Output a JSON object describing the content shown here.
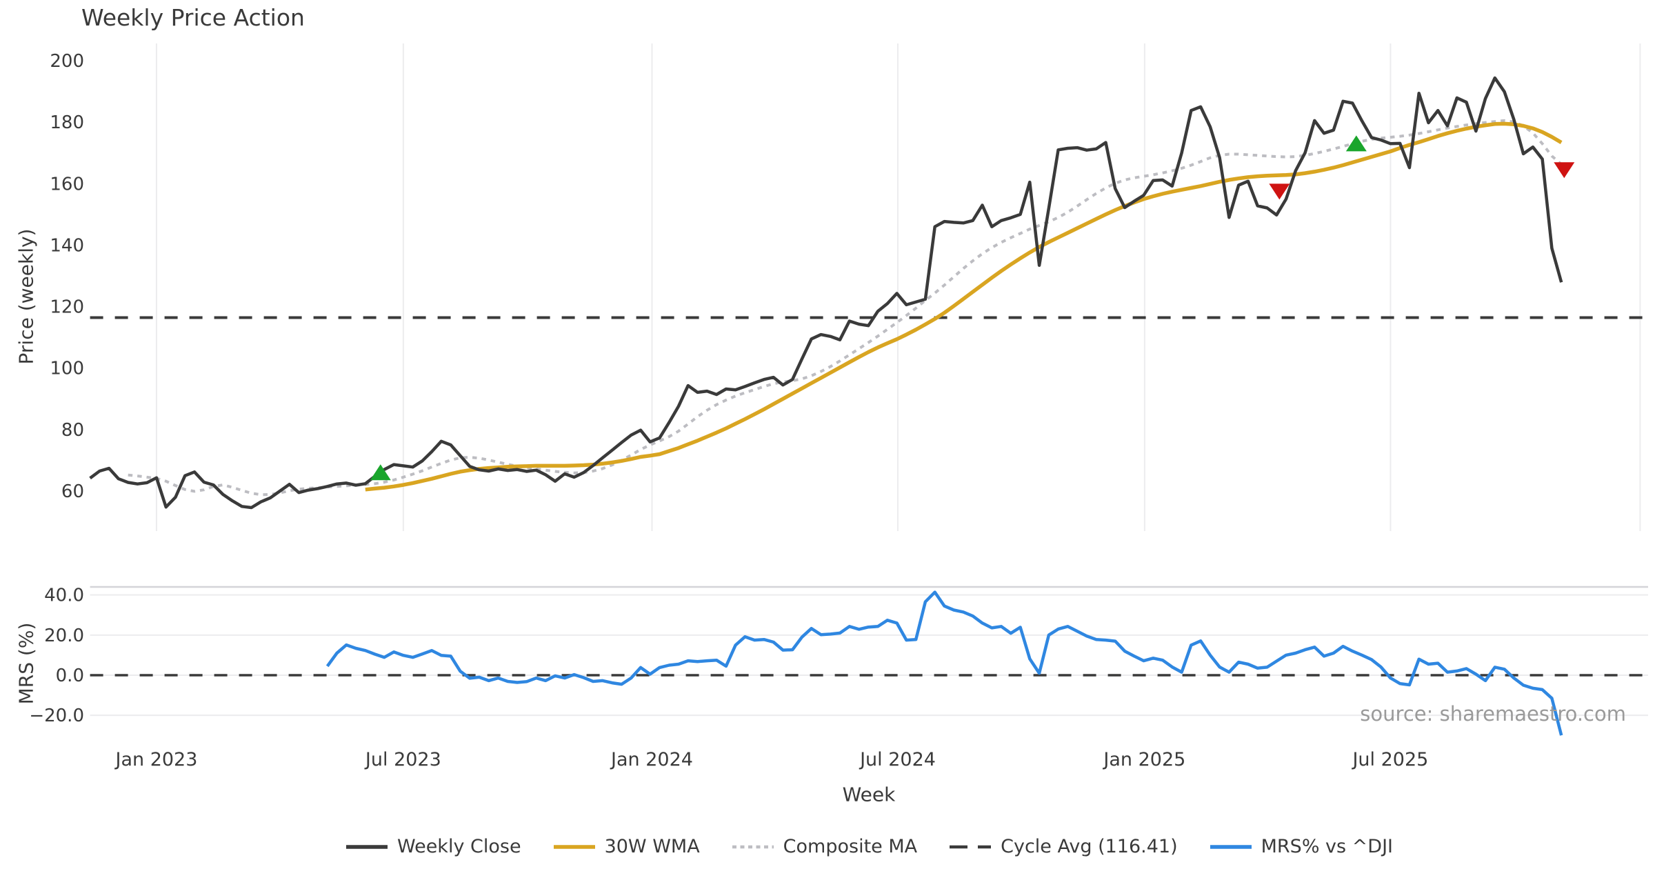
{
  "title": "Weekly Price Action",
  "source": "source: sharemaestro.com",
  "colors": {
    "close": "#3a3a3a",
    "wma": "#d9a521",
    "composite": "#bdbdc2",
    "cycle": "#3a3a3a",
    "mrs": "#2f87e1",
    "buy": "#1aa52c",
    "sell": "#cf1312",
    "grid": "#ececee",
    "spine": "#d4d4d8",
    "tick_text": "#3a3a3a",
    "source_text": "#9a9a9a"
  },
  "legend": [
    {
      "label": "Weekly Close",
      "swatch": "solid",
      "color": "#3a3a3a"
    },
    {
      "label": "30W WMA",
      "swatch": "solid",
      "color": "#d9a521"
    },
    {
      "label": "Composite MA",
      "swatch": "dotted",
      "color": "#bdbdc2"
    },
    {
      "label": "Cycle Avg (116.41)",
      "swatch": "dashed",
      "color": "#3a3a3a"
    },
    {
      "label": "MRS% vs ^DJI",
      "swatch": "solid",
      "color": "#2f87e1"
    }
  ],
  "chart_data": {
    "type": "line",
    "title": "Weekly Price Action",
    "x": {
      "label": "Week",
      "weeks_total": 156,
      "ticks": [
        {
          "week": 7.0,
          "label": "Jan 2023"
        },
        {
          "week": 33.0,
          "label": "Jul 2023"
        },
        {
          "week": 59.2,
          "label": "Jan 2024"
        },
        {
          "week": 85.1,
          "label": "Jul 2024"
        },
        {
          "week": 111.1,
          "label": "Jan 2025"
        },
        {
          "week": 137.0,
          "label": "Jul 2025"
        }
      ],
      "extra_gridline_week": 163.3
    },
    "price_panel": {
      "ylabel": "Price (weekly)",
      "ylim": [
        47,
        205
      ],
      "yticks": [
        60,
        80,
        100,
        120,
        140,
        160,
        180,
        200
      ],
      "cycle_avg": 116.41,
      "series": {
        "weekly_close": {
          "name": "Weekly Close",
          "start_week": 0,
          "values": [
            64.2,
            66.5,
            67.4,
            64.0,
            62.8,
            62.3,
            62.7,
            64.3,
            54.8,
            58.0,
            65.0,
            66.2,
            62.9,
            62.0,
            58.9,
            56.8,
            55.0,
            54.6,
            56.5,
            57.8,
            60.0,
            62.2,
            59.5,
            60.3,
            60.8,
            61.5,
            62.3,
            62.6,
            61.9,
            62.4,
            64.8,
            67.0,
            68.6,
            68.2,
            67.8,
            69.8,
            72.8,
            76.2,
            75.0,
            71.5,
            68.0,
            66.9,
            66.5,
            67.2,
            66.7,
            67.0,
            66.4,
            66.8,
            65.3,
            63.2,
            65.6,
            64.5,
            66.0,
            68.3,
            70.8,
            73.3,
            75.8,
            78.2,
            79.8,
            76.0,
            77.3,
            82.3,
            87.6,
            94.3,
            92.1,
            92.5,
            91.4,
            93.2,
            92.9,
            94.0,
            95.2,
            96.3,
            97.0,
            94.5,
            96.3,
            103.0,
            109.5,
            110.9,
            110.3,
            109.2,
            115.3,
            114.3,
            113.8,
            118.5,
            121.0,
            124.3,
            120.6,
            121.5,
            122.4,
            146.0,
            147.7,
            147.4,
            147.2,
            148.0,
            153.0,
            146.0,
            148.0,
            148.9,
            150.0,
            160.5,
            133.4,
            152.0,
            171.0,
            171.5,
            171.7,
            170.9,
            171.3,
            173.4,
            158.4,
            152.2,
            154.3,
            156.2,
            161.0,
            161.2,
            159.2,
            170.0,
            183.8,
            185.0,
            178.5,
            168.5,
            149.0,
            159.5,
            160.8,
            152.8,
            152.1,
            149.8,
            155.0,
            164.2,
            170.0,
            180.5,
            176.4,
            177.4,
            186.8,
            186.2,
            180.4,
            175.0,
            174.2,
            173.0,
            173.1,
            165.2,
            189.4,
            179.8,
            183.8,
            178.8,
            187.9,
            186.5,
            177.1,
            187.7,
            194.4,
            189.9,
            180.9,
            169.7,
            171.9,
            168.0,
            139.0,
            127.9
          ]
        },
        "wma_30w": {
          "name": "30W WMA",
          "start_week": 29,
          "values": [
            60.5,
            60.8,
            61.1,
            61.5,
            62.0,
            62.6,
            63.3,
            64.0,
            64.8,
            65.6,
            66.3,
            66.8,
            67.2,
            67.5,
            67.7,
            67.9,
            68.0,
            68.1,
            68.2,
            68.2,
            68.2,
            68.2,
            68.3,
            68.4,
            68.6,
            68.9,
            69.3,
            69.8,
            70.4,
            71.1,
            71.5,
            72.0,
            73.0,
            74.0,
            75.2,
            76.4,
            77.7,
            79.0,
            80.4,
            81.9,
            83.4,
            85.0,
            86.6,
            88.3,
            90.0,
            91.7,
            93.4,
            95.1,
            96.8,
            98.5,
            100.2,
            101.9,
            103.6,
            105.2,
            106.7,
            108.1,
            109.4,
            110.9,
            112.5,
            114.2,
            116.0,
            118.0,
            120.2,
            122.5,
            124.8,
            127.1,
            129.4,
            131.6,
            133.7,
            135.7,
            137.6,
            139.4,
            141.0,
            142.5,
            144.0,
            145.5,
            147.0,
            148.5,
            150.0,
            151.4,
            152.7,
            153.9,
            155.0,
            155.9,
            156.7,
            157.4,
            158.0,
            158.6,
            159.2,
            159.9,
            160.6,
            161.2,
            161.7,
            162.1,
            162.4,
            162.6,
            162.7,
            162.8,
            163.0,
            163.4,
            163.9,
            164.5,
            165.2,
            166.0,
            166.9,
            167.8,
            168.7,
            169.6,
            170.5,
            171.6,
            172.6,
            173.5,
            174.5,
            175.5,
            176.4,
            177.2,
            177.9,
            178.5,
            179.0,
            179.4,
            179.5,
            179.3,
            178.8,
            178.0,
            176.8,
            175.2,
            173.4
          ]
        },
        "composite_ma": {
          "name": "Composite MA",
          "start_week": 4,
          "values": [
            65.2,
            64.9,
            64.5,
            64.1,
            63.2,
            61.8,
            60.5,
            59.9,
            60.4,
            61.5,
            62.0,
            61.2,
            60.2,
            59.3,
            58.8,
            58.9,
            59.4,
            60.1,
            60.6,
            60.9,
            61.1,
            61.3,
            61.5,
            61.7,
            61.9,
            62.1,
            62.4,
            62.9,
            63.6,
            64.5,
            65.5,
            66.6,
            67.8,
            69.0,
            70.1,
            70.8,
            71.0,
            70.7,
            70.1,
            69.4,
            68.7,
            68.1,
            67.6,
            67.2,
            66.8,
            66.4,
            66.1,
            65.9,
            66.0,
            66.5,
            67.3,
            68.5,
            70.0,
            71.7,
            73.5,
            75.0,
            76.3,
            77.7,
            79.5,
            81.8,
            84.2,
            86.3,
            88.1,
            89.6,
            90.9,
            92.0,
            93.0,
            94.0,
            94.9,
            95.5,
            95.9,
            96.5,
            97.5,
            98.9,
            100.5,
            102.3,
            104.3,
            106.3,
            108.3,
            110.4,
            112.6,
            114.8,
            117.1,
            119.5,
            122.0,
            124.4,
            127.0,
            129.7,
            132.4,
            134.9,
            137.2,
            139.2,
            140.9,
            142.4,
            143.8,
            145.2,
            146.4,
            147.6,
            149.0,
            150.7,
            152.7,
            154.8,
            156.8,
            158.6,
            160.1,
            161.2,
            161.9,
            162.4,
            162.9,
            163.5,
            164.2,
            165.0,
            166.0,
            167.2,
            168.4,
            169.2,
            169.6,
            169.6,
            169.4,
            169.2,
            169.0,
            168.8,
            168.7,
            168.8,
            169.2,
            169.8,
            170.5,
            171.3,
            172.1,
            173.0,
            173.8,
            174.4,
            174.8,
            175.1,
            175.4,
            175.8,
            176.3,
            176.9,
            177.5,
            178.1,
            178.6,
            179.1,
            179.5,
            179.9,
            180.2,
            180.5,
            180.1,
            178.8,
            176.5,
            173.0,
            169.0,
            166.3
          ]
        }
      },
      "markers": [
        {
          "type": "buy",
          "week": 30.6,
          "price": 66.0
        },
        {
          "type": "sell",
          "week": 125.3,
          "price": 157.5
        },
        {
          "type": "buy",
          "week": 133.4,
          "price": 173.0
        },
        {
          "type": "sell",
          "week": 155.3,
          "price": 164.5
        }
      ]
    },
    "mrs_panel": {
      "ylabel": "MRS (%)",
      "ylim": [
        -34,
        44
      ],
      "yticks": [
        40,
        20,
        0,
        -20
      ],
      "ytick_labels": [
        "40.0",
        "20.0",
        "0.0",
        "−20.0"
      ],
      "zero_line": 0,
      "series": {
        "mrs_vs_dji": {
          "name": "MRS% vs ^DJI",
          "start_week": 25,
          "values": [
            4.5,
            11.0,
            15.1,
            13.4,
            12.3,
            10.5,
            8.9,
            11.6,
            9.9,
            8.9,
            10.6,
            12.3,
            9.9,
            9.5,
            2.0,
            -1.5,
            -1.0,
            -2.7,
            -1.4,
            -3.1,
            -3.6,
            -3.2,
            -1.4,
            -2.7,
            -0.3,
            -1.4,
            0.3,
            -1.2,
            -3.1,
            -2.7,
            -3.8,
            -4.5,
            -1.4,
            3.8,
            0.5,
            3.8,
            5.0,
            5.5,
            7.2,
            6.8,
            7.2,
            7.5,
            4.5,
            15.0,
            19.2,
            17.5,
            17.8,
            16.5,
            12.5,
            12.7,
            19.0,
            23.3,
            20.2,
            20.5,
            21.0,
            24.3,
            22.9,
            24.0,
            24.3,
            27.4,
            26.0,
            17.5,
            17.8,
            36.6,
            41.4,
            34.5,
            32.5,
            31.5,
            29.5,
            26.0,
            23.6,
            24.3,
            20.9,
            23.9,
            8.2,
            1.0,
            20.0,
            23.0,
            24.3,
            21.9,
            19.5,
            17.8,
            17.5,
            17.0,
            12.0,
            9.5,
            7.2,
            8.5,
            7.5,
            4.1,
            1.5,
            15.0,
            17.1,
            10.0,
            4.1,
            1.5,
            6.5,
            5.5,
            3.5,
            4.0,
            7.0,
            10.0,
            11.0,
            12.7,
            14.0,
            9.5,
            11.0,
            14.4,
            12.0,
            10.0,
            7.8,
            4.1,
            -1.4,
            -4.2,
            -4.8,
            8.0,
            5.5,
            6.0,
            1.5,
            2.1,
            3.3,
            0.5,
            -2.7,
            4.0,
            3.0,
            -1.4,
            -5.0,
            -6.5,
            -7.2,
            -11.5,
            -30.0
          ]
        }
      }
    }
  }
}
